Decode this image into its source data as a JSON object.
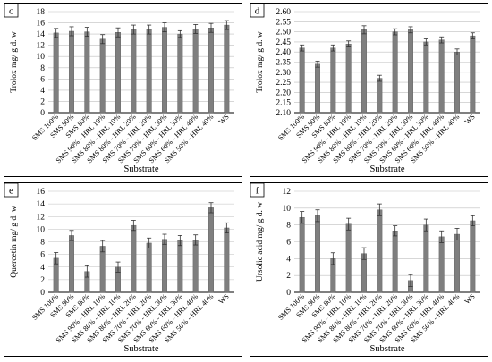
{
  "chart_data": [
    {
      "type": "bar",
      "panel_label": "c",
      "ylabel": "Trolox mg/ g d. w",
      "xlabel": "Substrate",
      "ylim": [
        0,
        18
      ],
      "ytick_step": 2,
      "ytick_decimals": 0,
      "grid": true,
      "bar_color": "#7f7f7f",
      "categories": [
        "SMS 100%",
        "SMS 90%",
        "SMS 80%",
        "SMS 90% - HRL 10%",
        "SMS 80% - HRL 10%",
        "SMS 80% - HRL 20%",
        "SMS 70% - HRL 20%",
        "SMS 70% - HRL 30%",
        "SMS 60% - HRL 30%",
        "SMS 60% - HRL 40%",
        "SMS 50% - HRL 40%",
        "WS"
      ],
      "values": [
        14.2,
        14.5,
        14.4,
        13.1,
        14.3,
        14.8,
        14.8,
        15.2,
        14.0,
        14.9,
        15.1,
        15.6
      ],
      "errors": [
        0.8,
        0.8,
        0.8,
        0.8,
        0.8,
        0.8,
        0.8,
        0.8,
        0.6,
        0.8,
        0.8,
        0.8
      ]
    },
    {
      "type": "bar",
      "panel_label": "d",
      "ylabel": "Trolox mg/ g d. w",
      "xlabel": "Substrate",
      "ylim": [
        2.1,
        2.6
      ],
      "ytick_step": 0.05,
      "ytick_decimals": 2,
      "grid": true,
      "bar_color": "#7f7f7f",
      "categories": [
        "SMS 100%",
        "SMS 90%",
        "SMS 80%",
        "SMS 90% - HRL 10%",
        "SMS 80% - HRL 10%",
        "SMS 80% - HRL 20%",
        "SMS 70% - HRL 20%",
        "SMS 70% - HRL 30%",
        "SMS 60% - HRL 30%",
        "SMS 60% - HRL 40%",
        "SMS 50% - HRL 40%",
        "WS"
      ],
      "values": [
        2.42,
        2.34,
        2.42,
        2.44,
        2.51,
        2.27,
        2.5,
        2.51,
        2.45,
        2.46,
        2.4,
        2.48
      ],
      "errors": [
        0.015,
        0.015,
        0.015,
        0.015,
        0.02,
        0.015,
        0.015,
        0.015,
        0.015,
        0.015,
        0.015,
        0.015
      ]
    },
    {
      "type": "bar",
      "panel_label": "e",
      "ylabel": "Quercetin mg/ g d. w",
      "xlabel": "Substrate",
      "ylim": [
        0,
        16
      ],
      "ytick_step": 2,
      "ytick_decimals": 0,
      "grid": true,
      "bar_color": "#7f7f7f",
      "categories": [
        "SMS 100%",
        "SMS 90%",
        "SMS 80%",
        "SMS 90% - HRL 10%",
        "SMS 80% - HRL 10%",
        "SMS 80% - HRL 20%",
        "SMS 70% - HRL 20%",
        "SMS 70% - HRL 30%",
        "SMS 60% - HRL 30%",
        "SMS 60% - HRL 40%",
        "SMS 50% - HRL 40%",
        "WS"
      ],
      "values": [
        5.4,
        9.0,
        3.3,
        7.3,
        4.0,
        10.6,
        7.8,
        8.4,
        8.2,
        8.3,
        13.4,
        10.2
      ],
      "errors": [
        0.9,
        0.8,
        0.9,
        0.9,
        0.8,
        0.8,
        0.8,
        0.8,
        0.8,
        0.8,
        0.8,
        0.8
      ]
    },
    {
      "type": "bar",
      "panel_label": "f",
      "ylabel": "Ursolic acid mg/ g d. w",
      "xlabel": "Substrate",
      "ylim": [
        0,
        12
      ],
      "ytick_step": 2,
      "ytick_decimals": 0,
      "grid": true,
      "bar_color": "#7f7f7f",
      "categories": [
        "SMS 100%",
        "SMS 90%",
        "SMS 80%",
        "SMS 90% - HRL 10%",
        "SMS 80% - HRL 10%",
        "SMS 80% - HRL 20%",
        "SMS 70% - HRL 20%",
        "SMS 70% - HRL 30%",
        "SMS 60% - HRL 30%",
        "SMS 60% - HRL 40%",
        "SMS 50% - HRL 40%",
        "WS"
      ],
      "values": [
        8.9,
        9.1,
        4.0,
        8.1,
        4.6,
        9.8,
        7.3,
        1.4,
        8.0,
        6.6,
        6.9,
        8.5
      ],
      "errors": [
        0.7,
        0.7,
        0.7,
        0.7,
        0.7,
        0.7,
        0.6,
        0.7,
        0.7,
        0.7,
        0.7,
        0.6
      ]
    }
  ]
}
